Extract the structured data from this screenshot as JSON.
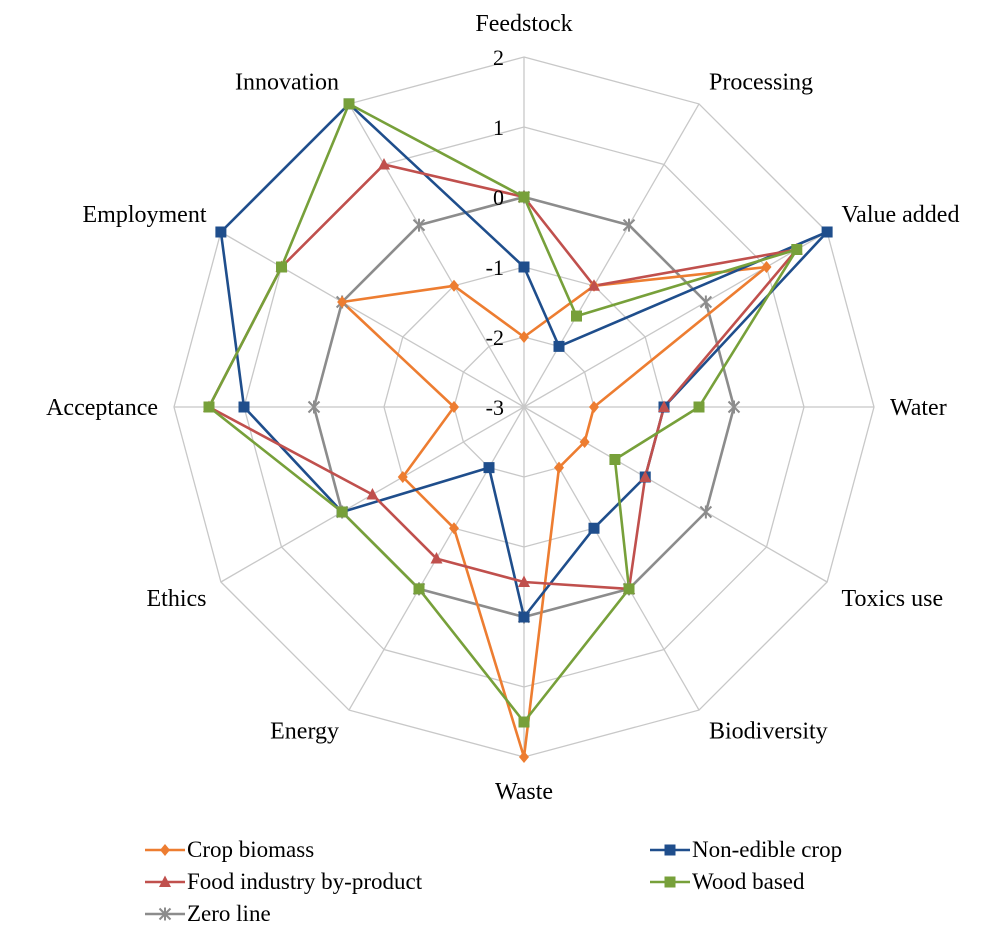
{
  "chart_data": {
    "type": "radar",
    "axes": [
      "Feedstock",
      "Processing",
      "Value added",
      "Water",
      "Toxics use",
      "Biodiversity",
      "Waste",
      "Energy",
      "Ethics",
      "Acceptance",
      "Employment",
      "Innovation"
    ],
    "rlim": [
      -3,
      2
    ],
    "ticks": [
      2,
      1,
      0,
      -1,
      -2,
      -3
    ],
    "tick_labels": [
      "2",
      "1",
      "0",
      "-1",
      "-2",
      "-3"
    ],
    "grid": true,
    "legend_position": "bottom",
    "series": [
      {
        "name": "Crop biomass",
        "color": "#ED7D31",
        "marker": "diamond",
        "values": [
          -2,
          -1,
          1,
          -2,
          -2,
          -2,
          2,
          -1,
          -1,
          -2,
          0,
          -1
        ]
      },
      {
        "name": "Non-edible crop",
        "color": "#1F4E8C",
        "marker": "square",
        "values": [
          -1,
          -2,
          2,
          -1,
          -1,
          -1,
          0,
          -2,
          0,
          1,
          2,
          2
        ]
      },
      {
        "name": "Food industry by-product",
        "color": "#C0504D",
        "marker": "triangle",
        "values": [
          0,
          -1,
          1.5,
          -1,
          -1,
          0,
          -0.5,
          -0.5,
          -0.5,
          1.5,
          1,
          1
        ]
      },
      {
        "name": "Wood based",
        "color": "#77A03A",
        "marker": "square",
        "values": [
          0,
          -1.5,
          1.5,
          -0.5,
          -1.5,
          0,
          1.5,
          0,
          0,
          1.5,
          1,
          2
        ]
      },
      {
        "name": "Zero line",
        "color": "#8C8C8C",
        "marker": "cross",
        "values": [
          0,
          0,
          0,
          0,
          0,
          0,
          0,
          0,
          0,
          0,
          0,
          0
        ]
      }
    ]
  }
}
